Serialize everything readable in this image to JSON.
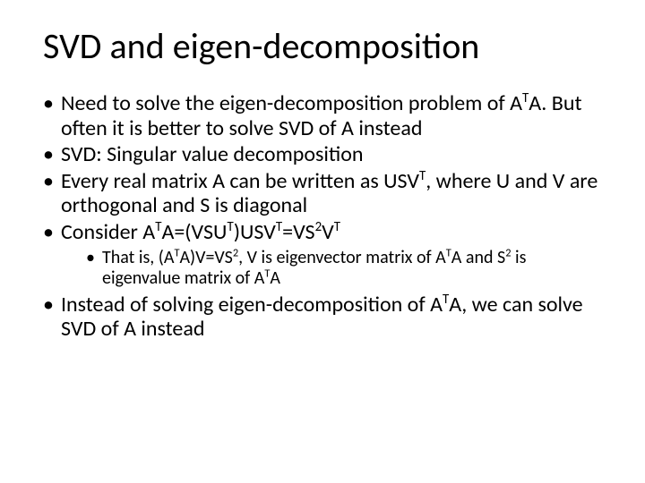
{
  "colors": {
    "background": "#ffffff",
    "text": "#000000"
  },
  "typography": {
    "family": "Calibri",
    "title_fontsize": 40,
    "bullet_fontsize": 24,
    "subbullet_fontsize": 20
  },
  "title": "SVD and eigen-decomposition",
  "bullets": {
    "b1_a": "Need to solve the eigen-decomposition problem of A",
    "b1_b": "A. But often it is better to solve SVD of A instead",
    "b2": "SVD: Singular value decomposition",
    "b3_a": "Every real matrix A can be written as USV",
    "b3_b": ", where U and V are orthogonal and S is diagonal",
    "b4_a": "Consider A",
    "b4_b": "A=(VSU",
    "b4_c": ")USV",
    "b4_d": "=VS",
    "b4_e": "V",
    "sub_a": "That is, (A",
    "sub_b": "A)V=VS",
    "sub_c": ", V is eigenvector matrix of A",
    "sub_d": "A and S",
    "sub_e": " is eigenvalue matrix of A",
    "sub_f": "A",
    "b5_a": "Instead of solving eigen-decomposition of A",
    "b5_b": "A, we can solve SVD of A instead"
  },
  "superscripts": {
    "T": "T",
    "two": "2"
  }
}
